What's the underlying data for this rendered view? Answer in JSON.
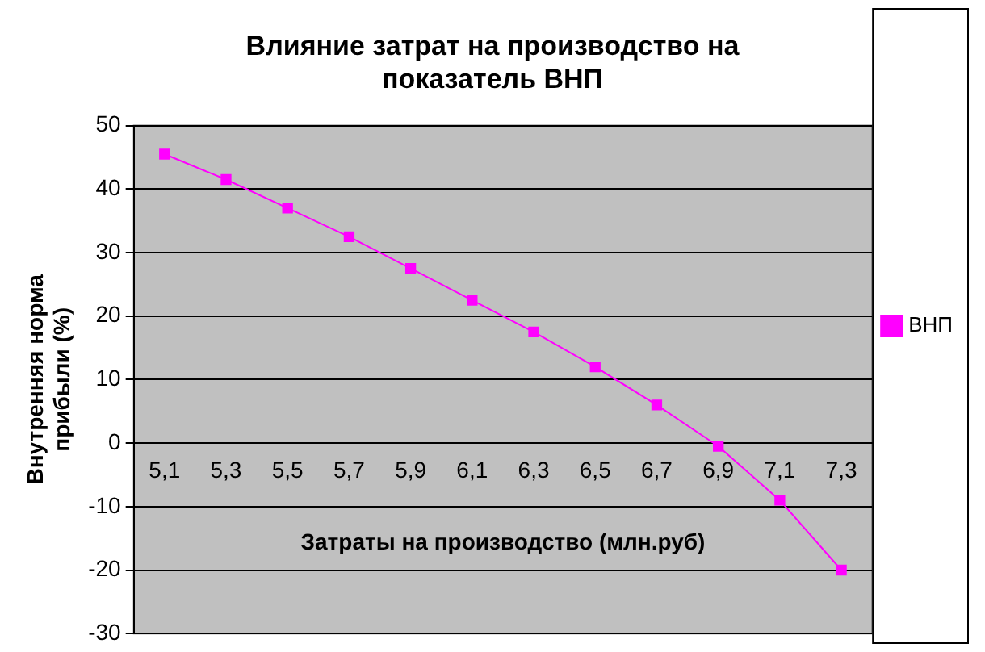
{
  "chart_data": {
    "type": "line",
    "title": [
      "Влияние затрат на производство на",
      "показатель ВНП"
    ],
    "xlabel": "Затраты на производство (млн.руб)",
    "ylabel": [
      "Внутренняя норма",
      "прибыли (%)"
    ],
    "categories": [
      "5,1",
      "5,3",
      "5,5",
      "5,7",
      "5,9",
      "6,1",
      "6,3",
      "6,5",
      "6,7",
      "6,9",
      "7,1",
      "7,3"
    ],
    "series": [
      {
        "name": "ВНП",
        "color": "#ff00ff",
        "values": [
          45.5,
          41.5,
          37,
          32.5,
          27.5,
          22.5,
          17.5,
          12,
          6,
          -0.5,
          -9,
          -20
        ]
      }
    ],
    "ylim": [
      -30,
      50
    ],
    "yticks": [
      -30,
      -20,
      -10,
      0,
      10,
      20,
      30,
      40,
      50
    ],
    "grid": "y",
    "legend": "right",
    "marker": "square",
    "line_style": "solid"
  }
}
